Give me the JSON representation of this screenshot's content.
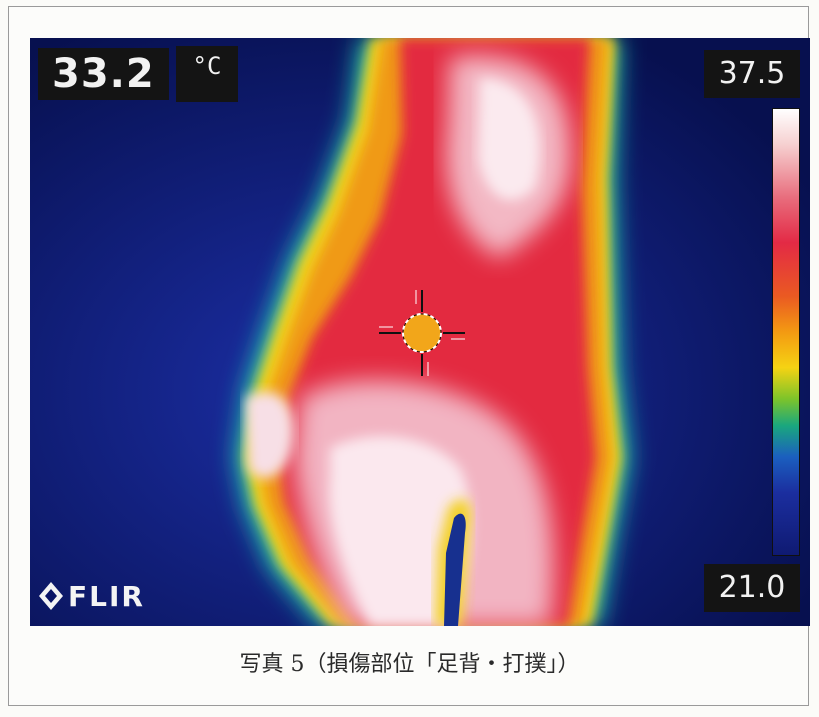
{
  "image": {
    "subject": "thermal image of foot dorsum",
    "palette": "ironbow"
  },
  "readout": {
    "spot_temperature": "33.2",
    "unit": "°C"
  },
  "scale": {
    "max": "37.5",
    "min": "21.0"
  },
  "logo": {
    "text": "FLIR"
  },
  "caption": "写真 5（損傷部位「足背・打撲」）",
  "colors": {
    "background_cold": "#0a1466",
    "warm": "#e32a45",
    "hot": "#ffffff",
    "edge": "#f5d313"
  }
}
